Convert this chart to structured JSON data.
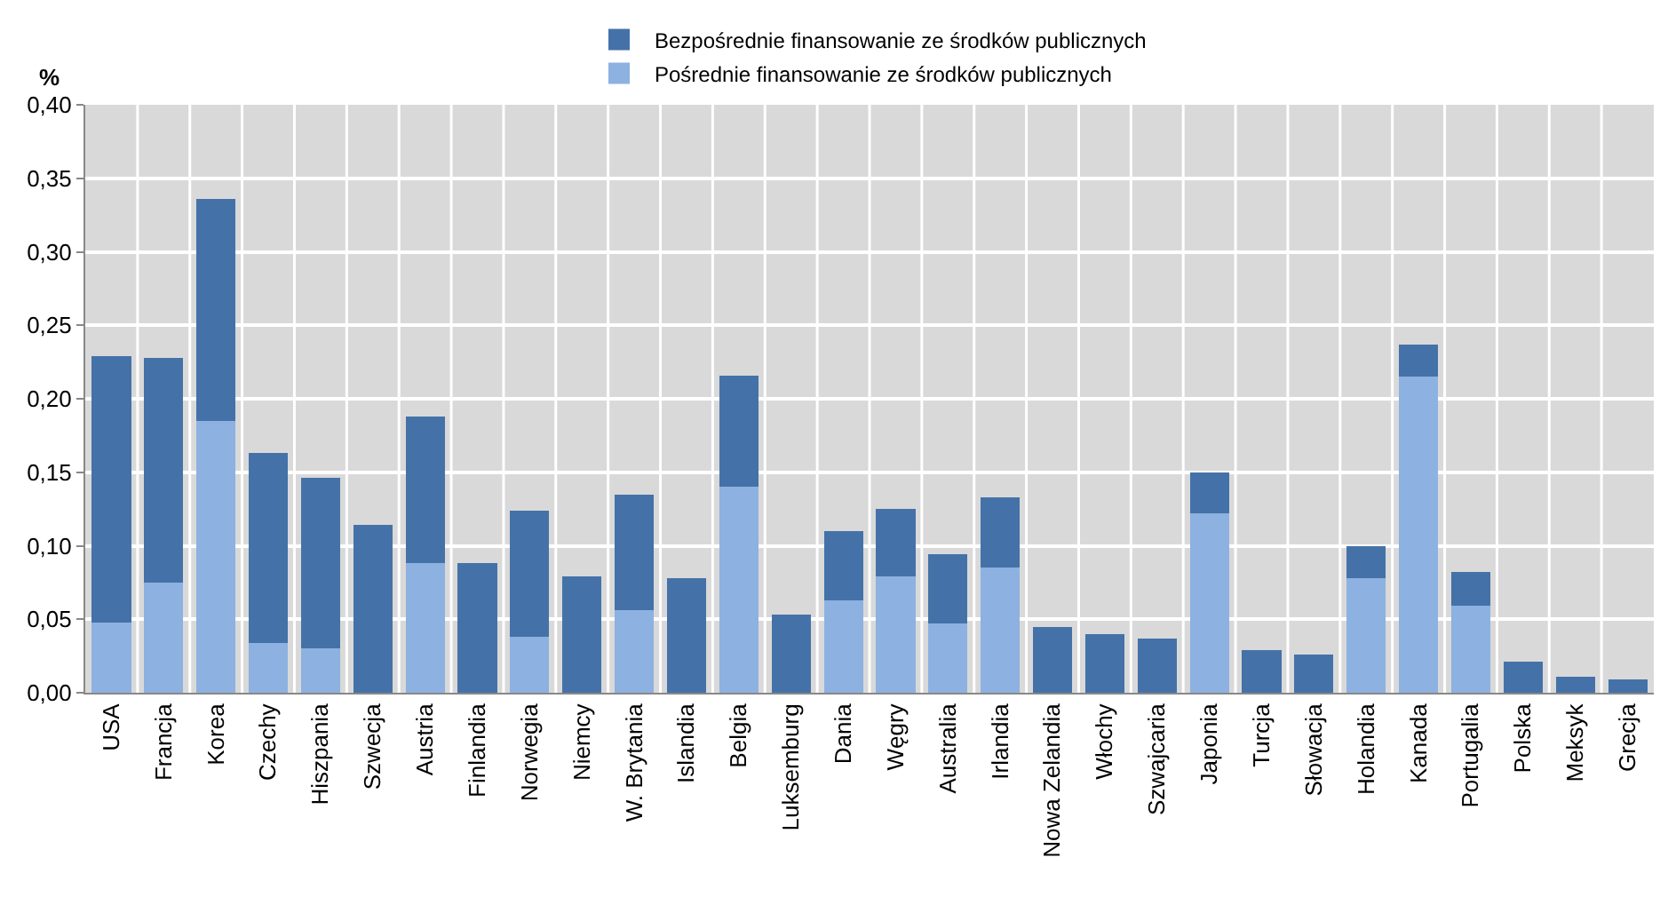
{
  "chart_data": {
    "type": "bar",
    "stacked": true,
    "ylabel": "%",
    "categories": [
      "USA",
      "Francja",
      "Korea",
      "Czechy",
      "Hiszpania",
      "Szwecja",
      "Austria",
      "Finlandia",
      "Norwegia",
      "Niemcy",
      "W. Brytania",
      "Islandia",
      "Belgia",
      "Luksemburg",
      "Dania",
      "Węgry",
      "Australia",
      "Irlandia",
      "Nowa Zelandia",
      "Włochy",
      "Szwajcaria",
      "Japonia",
      "Turcja",
      "Słowacja",
      "Holandia",
      "Kanada",
      "Portugalia",
      "Polska",
      "Meksyk",
      "Grecja"
    ],
    "series": [
      {
        "name": "Pośrednie finansowanie ze środków publicznych",
        "color": "#8db1e0",
        "values": [
          0.048,
          0.075,
          0.185,
          0.034,
          0.03,
          null,
          0.088,
          null,
          0.038,
          null,
          0.056,
          null,
          0.14,
          null,
          0.063,
          0.079,
          0.047,
          0.085,
          null,
          null,
          null,
          0.122,
          null,
          null,
          0.078,
          0.215,
          0.059,
          null,
          null,
          null
        ]
      },
      {
        "name": "Bezpośrednie finansowanie ze środków publicznych",
        "color": "#4472a8",
        "values": [
          0.181,
          0.153,
          0.151,
          0.129,
          0.116,
          0.114,
          0.1,
          0.088,
          0.086,
          0.079,
          0.079,
          0.078,
          0.076,
          0.053,
          0.047,
          0.046,
          0.047,
          0.048,
          0.045,
          0.04,
          0.037,
          0.028,
          0.029,
          0.026,
          0.022,
          0.022,
          0.023,
          0.021,
          0.011,
          0.009
        ]
      }
    ],
    "ylim": [
      0,
      0.4
    ],
    "yticks": [
      {
        "value": 0,
        "label": "0,00"
      },
      {
        "value": 0.05,
        "label": "0,05"
      },
      {
        "value": 0.1,
        "label": "0,10"
      },
      {
        "value": 0.15,
        "label": "0,15"
      },
      {
        "value": 0.2,
        "label": "0,20"
      },
      {
        "value": 0.25,
        "label": "0,25"
      },
      {
        "value": 0.3,
        "label": "0,30"
      },
      {
        "value": 0.35,
        "label": "0,35"
      },
      {
        "value": 0.4,
        "label": "0,40"
      }
    ],
    "grid": true,
    "legend": "top"
  }
}
